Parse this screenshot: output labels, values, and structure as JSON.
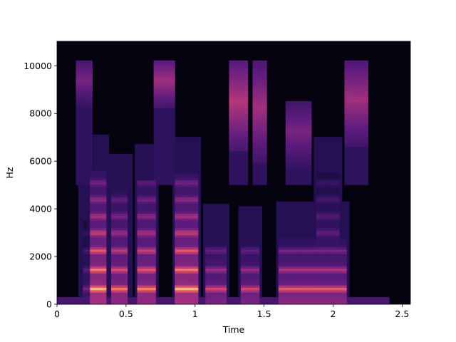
{
  "chart_data": {
    "type": "heatmap",
    "title": "",
    "xlabel": "Time",
    "ylabel": "Hz",
    "xlim": [
      0,
      2.56
    ],
    "ylim": [
      0,
      11025
    ],
    "colormap": "magma",
    "grid": false,
    "x_ticks": [
      {
        "value": 0,
        "label": "0"
      },
      {
        "value": 0.5,
        "label": "0.5"
      },
      {
        "value": 1,
        "label": "1"
      },
      {
        "value": 1.5,
        "label": "1.5"
      },
      {
        "value": 2,
        "label": "2"
      },
      {
        "value": 2.5,
        "label": "2.5"
      }
    ],
    "y_ticks": [
      {
        "value": 0,
        "label": "0"
      },
      {
        "value": 2000,
        "label": "2000"
      },
      {
        "value": 4000,
        "label": "4000"
      },
      {
        "value": 6000,
        "label": "6000"
      },
      {
        "value": 8000,
        "label": "8000"
      },
      {
        "value": 10000,
        "label": "10000"
      }
    ],
    "segments": [
      {
        "t0": 0.18,
        "t1": 0.26,
        "f0": 0,
        "f1": 3500,
        "intensity": 0.45
      },
      {
        "t0": 0.24,
        "t1": 0.36,
        "f0": 0,
        "f1": 5600,
        "intensity": 0.9
      },
      {
        "t0": 0.4,
        "t1": 0.52,
        "f0": 0,
        "f1": 4800,
        "intensity": 0.8
      },
      {
        "t0": 0.58,
        "t1": 0.72,
        "f0": 0,
        "f1": 5200,
        "intensity": 0.82
      },
      {
        "t0": 0.85,
        "t1": 1.02,
        "f0": 0,
        "f1": 5500,
        "intensity": 0.9
      },
      {
        "t0": 1.08,
        "t1": 1.23,
        "f0": 0,
        "f1": 2700,
        "intensity": 0.72
      },
      {
        "t0": 1.33,
        "t1": 1.47,
        "f0": 0,
        "f1": 2600,
        "intensity": 0.72
      },
      {
        "t0": 1.6,
        "t1": 2.1,
        "f0": 0,
        "f1": 2800,
        "intensity": 0.78
      },
      {
        "t0": 1.88,
        "t1": 2.05,
        "f0": 1500,
        "f1": 5500,
        "intensity": 0.55
      }
    ],
    "fricatives": [
      {
        "t0": 0.14,
        "t1": 0.26,
        "f0": 8800,
        "f1": 10000,
        "intensity": 0.45
      },
      {
        "t0": 0.7,
        "t1": 0.86,
        "f0": 8800,
        "f1": 10000,
        "intensity": 0.55
      },
      {
        "t0": 1.24,
        "t1": 1.39,
        "f0": 7000,
        "f1": 10000,
        "intensity": 0.6
      },
      {
        "t0": 1.41,
        "t1": 1.52,
        "f0": 6500,
        "f1": 10000,
        "intensity": 0.55
      },
      {
        "t0": 1.65,
        "t1": 1.85,
        "f0": 6200,
        "f1": 8300,
        "intensity": 0.45
      },
      {
        "t0": 2.08,
        "t1": 2.26,
        "f0": 7200,
        "f1": 10000,
        "intensity": 0.55
      }
    ],
    "harmonic_bands_hz": [
      650,
      1450,
      2250,
      3000,
      3700,
      4400,
      5100
    ],
    "colors": {
      "background": "#04030f",
      "low": "#3b0f70",
      "mid": "#b5367a",
      "high": "#fb8861",
      "peak": "#fcfdbf"
    }
  }
}
